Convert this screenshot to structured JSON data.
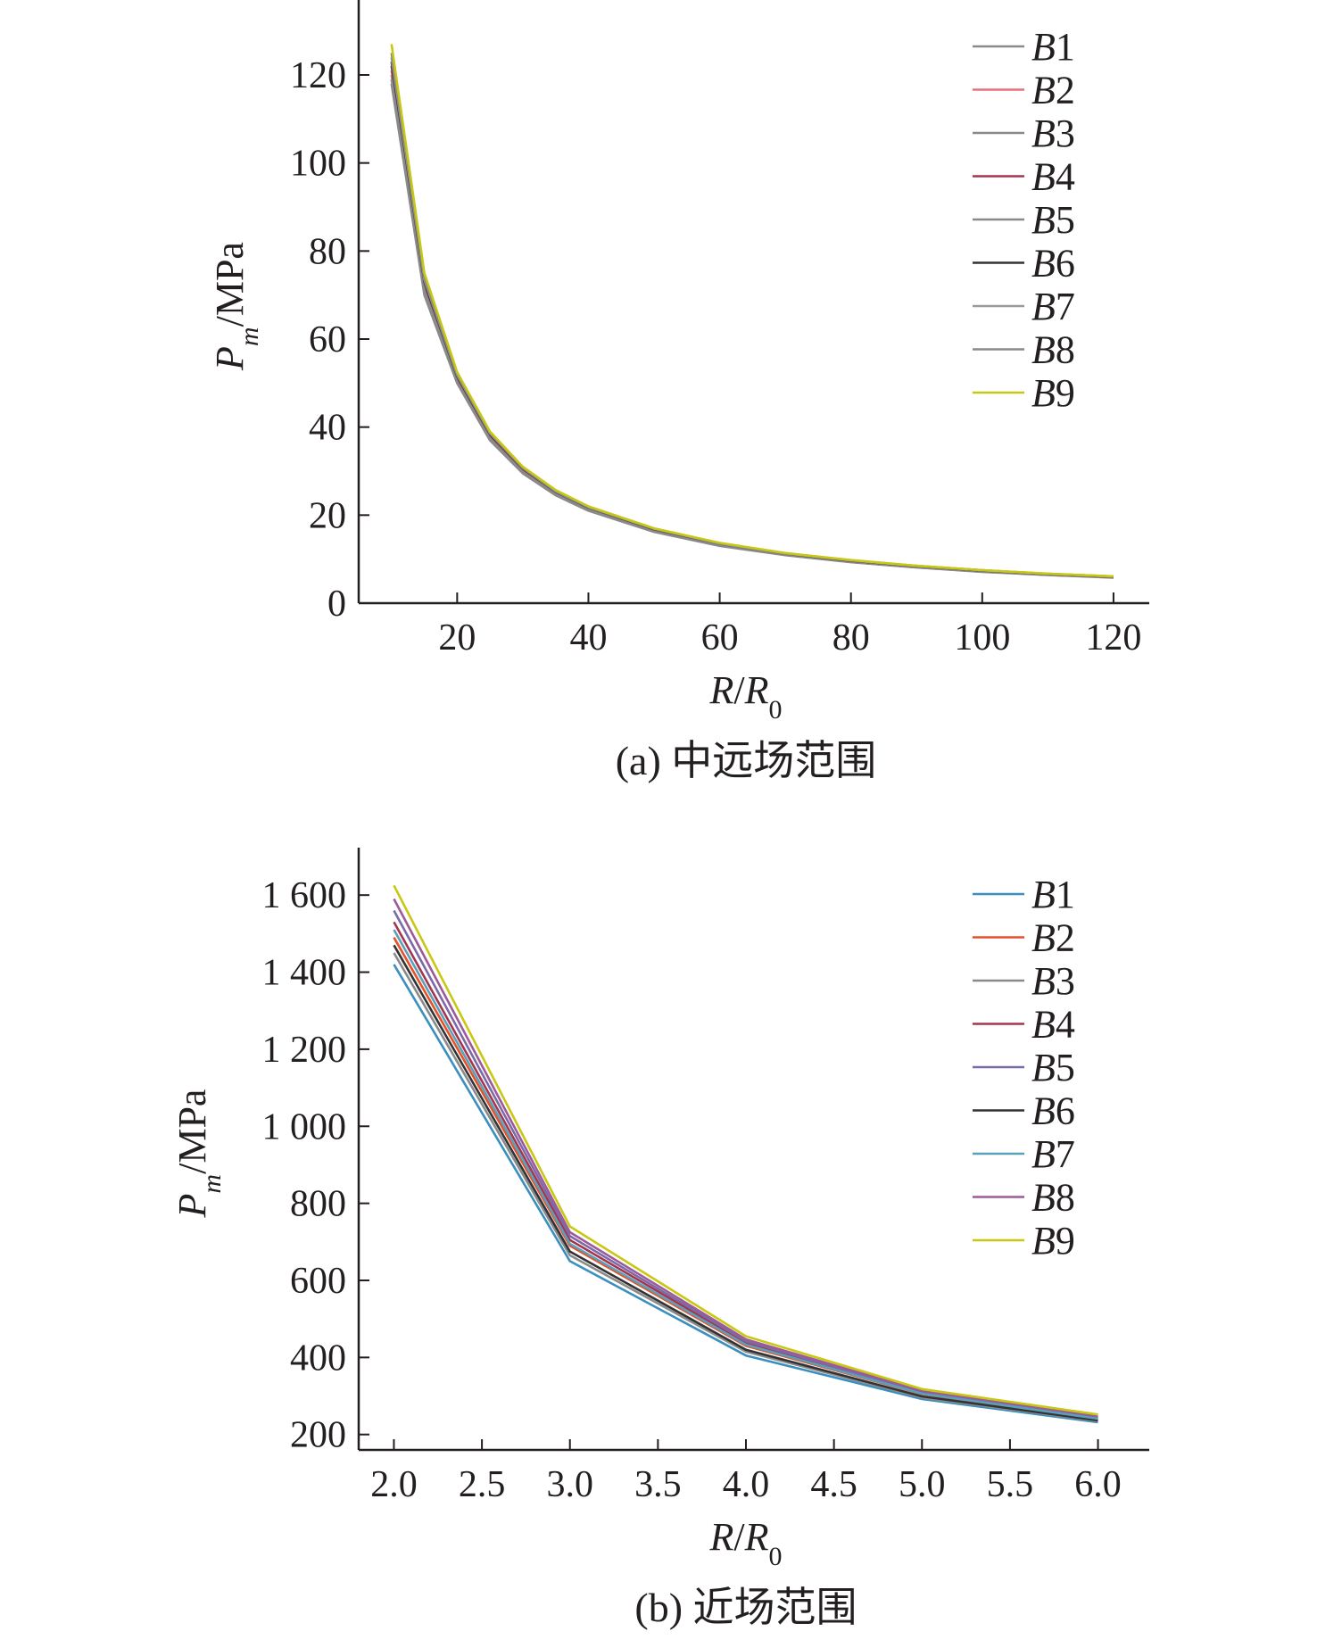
{
  "chart_data": [
    {
      "type": "line",
      "caption": "(a) 中远场范围",
      "ylabel": "P_m/MPa",
      "xlabel": "R/R_0",
      "xlim": [
        5,
        123
      ],
      "ylim": [
        0,
        135
      ],
      "xticks": [
        20,
        40,
        60,
        80,
        100,
        120
      ],
      "xtick_labels": [
        "20",
        "40",
        "60",
        "80",
        "100",
        "120"
      ],
      "yticks": [
        0,
        20,
        40,
        60,
        80,
        100,
        120
      ],
      "ytick_labels": [
        "0",
        "20",
        "40",
        "60",
        "80",
        "100",
        "120"
      ],
      "legend_position": "top-right",
      "x": [
        10,
        15,
        20,
        25,
        30,
        35,
        40,
        50,
        60,
        70,
        80,
        90,
        100,
        110,
        120
      ],
      "series": [
        {
          "name": "B1",
          "color": "#8a8a8a",
          "values": [
            118,
            70,
            50,
            37,
            29.5,
            24.5,
            21,
            16.2,
            13.0,
            10.9,
            9.3,
            8.1,
            7.1,
            6.4,
            5.8
          ]
        },
        {
          "name": "B2",
          "color": "#e8707a",
          "values": [
            121,
            72,
            51,
            38,
            30.2,
            25,
            21.5,
            16.6,
            13.3,
            11.1,
            9.5,
            8.3,
            7.3,
            6.5,
            5.9
          ]
        },
        {
          "name": "B3",
          "color": "#8a8a8a",
          "values": [
            120,
            71.5,
            50.5,
            37.5,
            30,
            24.8,
            21.3,
            16.4,
            13.2,
            11.0,
            9.4,
            8.2,
            7.2,
            6.5,
            5.9
          ]
        },
        {
          "name": "B4",
          "color": "#a3364e",
          "values": [
            122,
            72.5,
            51.2,
            38.2,
            30.4,
            25.2,
            21.6,
            16.7,
            13.4,
            11.2,
            9.6,
            8.3,
            7.3,
            6.6,
            6.0
          ]
        },
        {
          "name": "B5",
          "color": "#8a8a8a",
          "values": [
            119,
            71,
            50.3,
            37.3,
            29.8,
            24.7,
            21.2,
            16.3,
            13.1,
            10.95,
            9.35,
            8.15,
            7.15,
            6.45,
            5.85
          ]
        },
        {
          "name": "B6",
          "color": "#333333",
          "values": [
            123,
            73,
            51.5,
            38.4,
            30.6,
            25.3,
            21.7,
            16.8,
            13.5,
            11.25,
            9.65,
            8.4,
            7.4,
            6.6,
            6.0
          ]
        },
        {
          "name": "B7",
          "color": "#9a9a9a",
          "values": [
            124,
            73.5,
            51.8,
            38.6,
            30.7,
            25.4,
            21.8,
            16.9,
            13.55,
            11.3,
            9.7,
            8.45,
            7.45,
            6.65,
            6.05
          ]
        },
        {
          "name": "B8",
          "color": "#8a8a8a",
          "values": [
            125,
            74,
            52,
            38.8,
            30.8,
            25.5,
            21.9,
            16.95,
            13.6,
            11.35,
            9.72,
            8.47,
            7.47,
            6.67,
            6.07
          ]
        },
        {
          "name": "B9",
          "color": "#c8c814",
          "values": [
            127,
            75,
            52.5,
            39,
            31,
            25.7,
            22,
            17.0,
            13.7,
            11.4,
            9.8,
            8.5,
            7.5,
            6.7,
            6.1
          ]
        }
      ]
    },
    {
      "type": "line",
      "caption": "(b) 近场范围",
      "ylabel": "P_m/MPa",
      "xlabel": "R/R_0",
      "xlim": [
        1.8,
        6.2
      ],
      "ylim": [
        160,
        1700
      ],
      "xticks": [
        2.0,
        2.5,
        3.0,
        3.5,
        4.0,
        4.5,
        5.0,
        5.5,
        6.0
      ],
      "xtick_labels": [
        "2.0",
        "2.5",
        "3.0",
        "3.5",
        "4.0",
        "4.5",
        "5.0",
        "5.5",
        "6.0"
      ],
      "yticks": [
        200,
        400,
        600,
        800,
        1000,
        1200,
        1400,
        1600
      ],
      "ytick_labels": [
        "200",
        "400",
        "600",
        "800",
        "1 000",
        "1 200",
        "1 400",
        "1 600"
      ],
      "legend_position": "top-right",
      "x": [
        2.0,
        3.0,
        4.0,
        5.0,
        6.0
      ],
      "series": [
        {
          "name": "B1",
          "color": "#3a8fbf",
          "values": [
            1420,
            650,
            405,
            292,
            232
          ]
        },
        {
          "name": "B2",
          "color": "#e8502a",
          "values": [
            1490,
            690,
            430,
            305,
            240
          ]
        },
        {
          "name": "B3",
          "color": "#8a8a8a",
          "values": [
            1450,
            665,
            415,
            296,
            235
          ]
        },
        {
          "name": "B4",
          "color": "#a3364e",
          "values": [
            1530,
            705,
            438,
            308,
            243
          ]
        },
        {
          "name": "B5",
          "color": "#7a6aa8",
          "values": [
            1560,
            715,
            442,
            310,
            245
          ]
        },
        {
          "name": "B6",
          "color": "#333333",
          "values": [
            1470,
            675,
            420,
            299,
            237
          ]
        },
        {
          "name": "B7",
          "color": "#5aa0b8",
          "values": [
            1510,
            695,
            433,
            306,
            241
          ]
        },
        {
          "name": "B8",
          "color": "#9c5a9a",
          "values": [
            1590,
            725,
            447,
            313,
            248
          ]
        },
        {
          "name": "B9",
          "color": "#c8c814",
          "values": [
            1625,
            740,
            455,
            318,
            252
          ]
        }
      ]
    }
  ]
}
